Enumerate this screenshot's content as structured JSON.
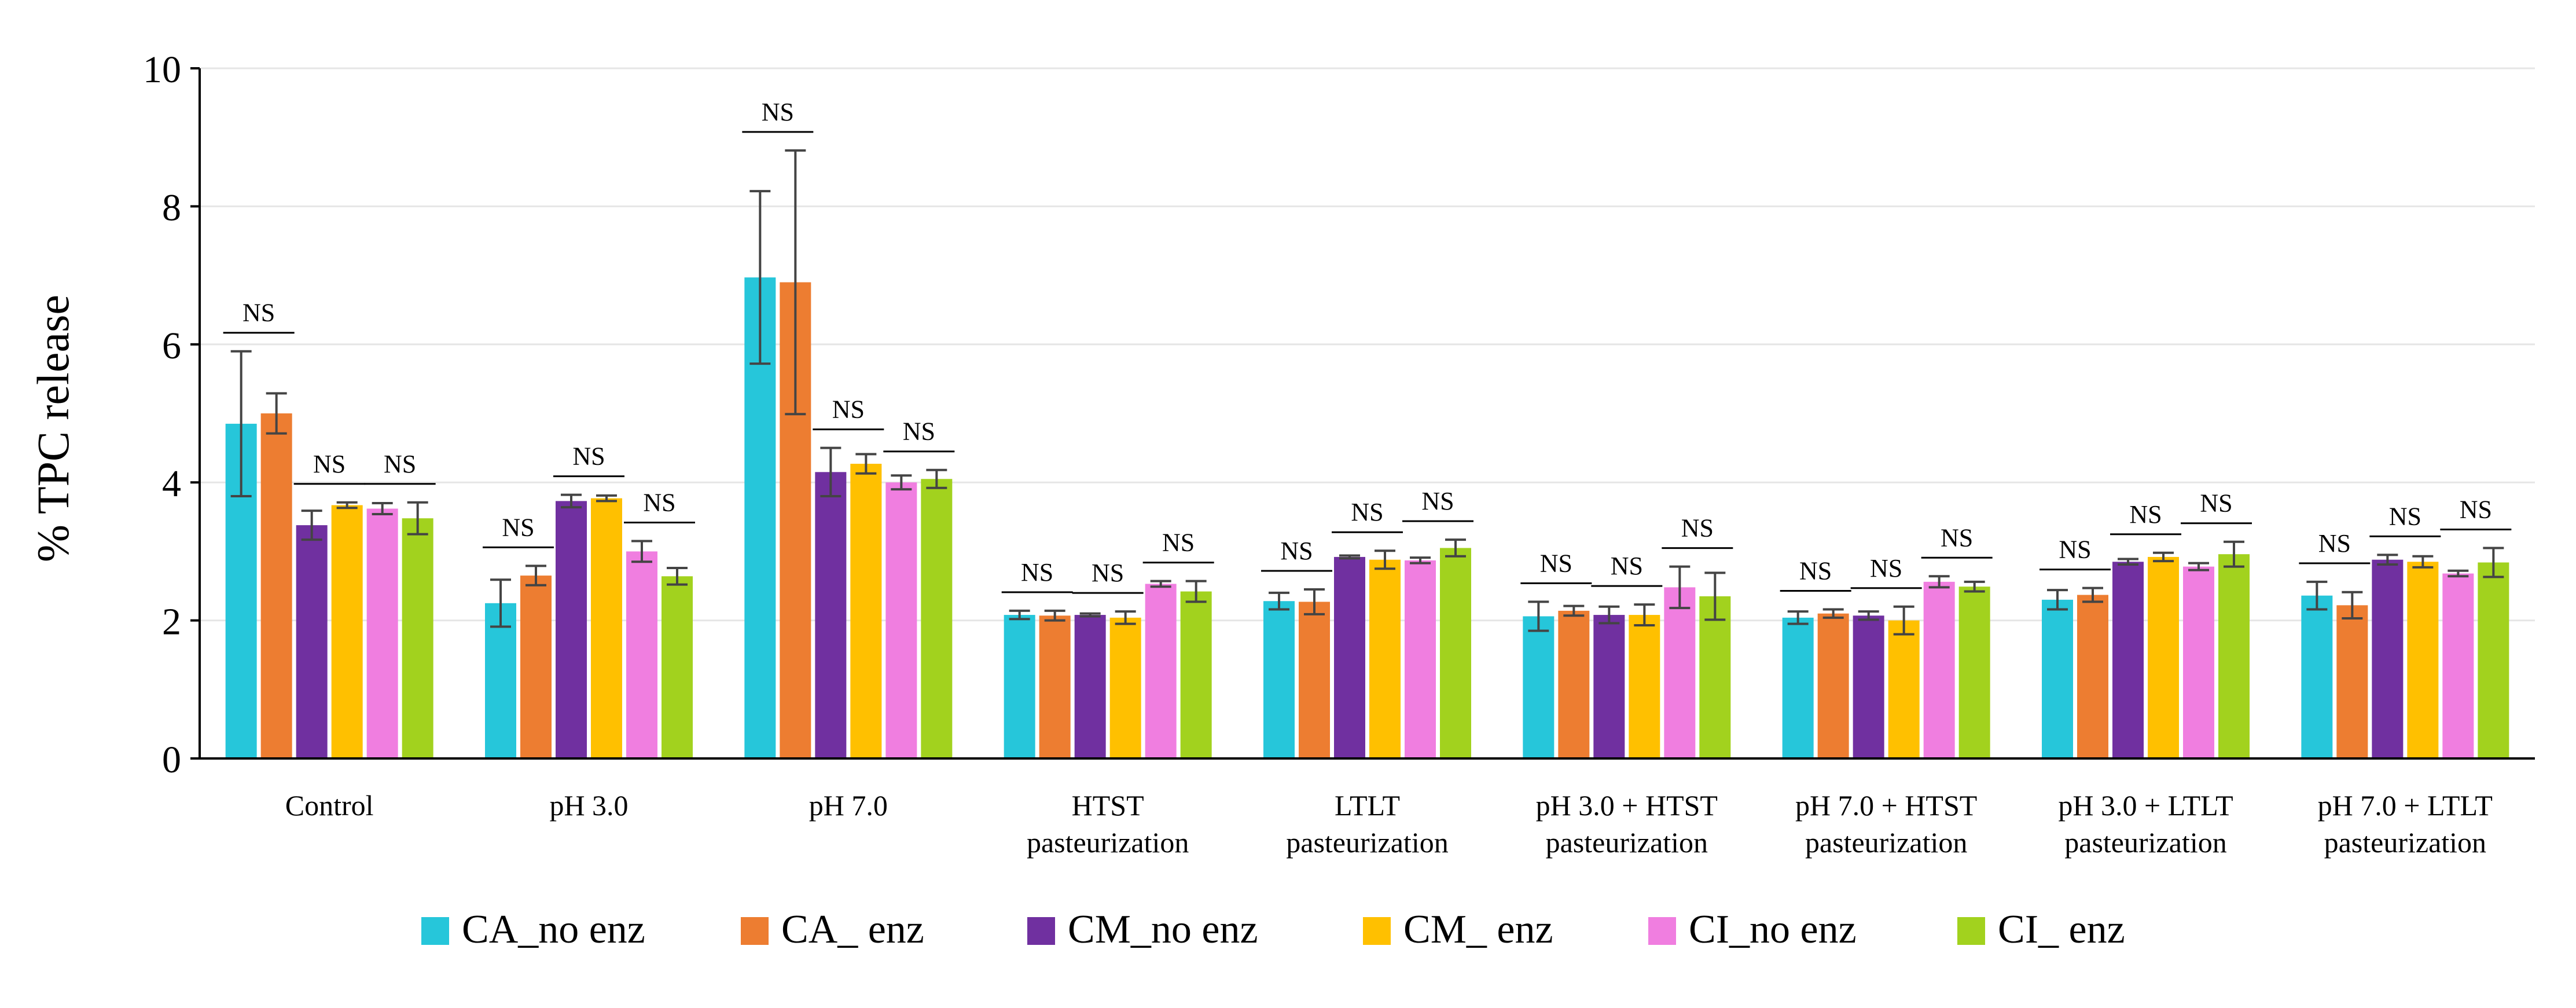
{
  "chart_data": {
    "type": "bar",
    "title": "",
    "xlabel": "",
    "ylabel": "% TPC release",
    "ylim": [
      0,
      10
    ],
    "yticks": [
      0,
      2,
      4,
      6,
      8,
      10
    ],
    "grid": true,
    "legend_position": "bottom",
    "categories": [
      [
        "Control"
      ],
      [
        "pH 3.0"
      ],
      [
        "pH 7.0"
      ],
      [
        "HTST",
        "pasteurization"
      ],
      [
        "LTLT",
        "pasteurization"
      ],
      [
        "pH 3.0 + HTST",
        "pasteurization"
      ],
      [
        "pH 7.0 + HTST",
        "pasteurization"
      ],
      [
        "pH 3.0 + LTLT",
        "pasteurization"
      ],
      [
        "pH 7.0 + LTLT",
        "pasteurization"
      ]
    ],
    "series": [
      {
        "name": "CA_no enz",
        "color": "#26C6DA",
        "values": [
          4.85,
          2.25,
          6.97,
          2.08,
          2.28,
          2.06,
          2.04,
          2.3,
          2.36
        ],
        "errors": [
          1.05,
          0.34,
          1.25,
          0.06,
          0.12,
          0.21,
          0.09,
          0.14,
          0.2
        ]
      },
      {
        "name": "CA_ enz",
        "color": "#ED7D31",
        "values": [
          5.0,
          2.65,
          6.9,
          2.07,
          2.27,
          2.14,
          2.1,
          2.37,
          2.22
        ],
        "errors": [
          0.29,
          0.14,
          1.91,
          0.07,
          0.18,
          0.07,
          0.06,
          0.1,
          0.19
        ]
      },
      {
        "name": "CM_no enz",
        "color": "#7030A0",
        "values": [
          3.38,
          3.73,
          4.15,
          2.08,
          2.92,
          2.08,
          2.07,
          2.85,
          2.88
        ],
        "errors": [
          0.21,
          0.09,
          0.35,
          0.02,
          0.02,
          0.12,
          0.06,
          0.04,
          0.07
        ]
      },
      {
        "name": "CM_ enz",
        "color": "#FFC000",
        "values": [
          3.67,
          3.77,
          4.27,
          2.04,
          2.88,
          2.08,
          2.0,
          2.92,
          2.85
        ],
        "errors": [
          0.04,
          0.04,
          0.14,
          0.09,
          0.13,
          0.15,
          0.2,
          0.06,
          0.08
        ]
      },
      {
        "name": "CI_no enz",
        "color": "#F07EE0",
        "values": [
          3.62,
          3.0,
          4.0,
          2.53,
          2.87,
          2.48,
          2.56,
          2.78,
          2.68
        ],
        "errors": [
          0.08,
          0.15,
          0.1,
          0.04,
          0.04,
          0.3,
          0.08,
          0.05,
          0.04
        ]
      },
      {
        "name": "CI_ enz",
        "color": "#A2D21E",
        "values": [
          3.48,
          2.64,
          4.05,
          2.42,
          3.05,
          2.35,
          2.49,
          2.96,
          2.84
        ],
        "errors": [
          0.23,
          0.12,
          0.13,
          0.15,
          0.12,
          0.34,
          0.07,
          0.18,
          0.21
        ]
      }
    ],
    "annotations": [
      {
        "category": 0,
        "pair": 0,
        "text": "NS"
      },
      {
        "category": 0,
        "pair": 1,
        "text": "NS"
      },
      {
        "category": 0,
        "pair": 2,
        "text": "NS"
      },
      {
        "category": 1,
        "pair": 0,
        "text": "NS"
      },
      {
        "category": 1,
        "pair": 1,
        "text": "NS"
      },
      {
        "category": 1,
        "pair": 2,
        "text": "NS"
      },
      {
        "category": 2,
        "pair": 0,
        "text": "NS"
      },
      {
        "category": 2,
        "pair": 1,
        "text": "NS"
      },
      {
        "category": 2,
        "pair": 2,
        "text": "NS"
      },
      {
        "category": 3,
        "pair": 0,
        "text": "NS"
      },
      {
        "category": 3,
        "pair": 1,
        "text": "NS"
      },
      {
        "category": 3,
        "pair": 2,
        "text": "NS"
      },
      {
        "category": 4,
        "pair": 0,
        "text": "NS"
      },
      {
        "category": 4,
        "pair": 1,
        "text": "NS"
      },
      {
        "category": 4,
        "pair": 2,
        "text": "NS"
      },
      {
        "category": 5,
        "pair": 0,
        "text": "NS"
      },
      {
        "category": 5,
        "pair": 1,
        "text": "NS"
      },
      {
        "category": 5,
        "pair": 2,
        "text": "NS"
      },
      {
        "category": 6,
        "pair": 0,
        "text": "NS"
      },
      {
        "category": 6,
        "pair": 1,
        "text": "NS"
      },
      {
        "category": 6,
        "pair": 2,
        "text": "NS"
      },
      {
        "category": 7,
        "pair": 0,
        "text": "NS"
      },
      {
        "category": 7,
        "pair": 1,
        "text": "NS"
      },
      {
        "category": 7,
        "pair": 2,
        "text": "NS"
      },
      {
        "category": 8,
        "pair": 0,
        "text": "NS"
      },
      {
        "category": 8,
        "pair": 1,
        "text": "NS"
      },
      {
        "category": 8,
        "pair": 2,
        "text": "NS"
      }
    ]
  }
}
